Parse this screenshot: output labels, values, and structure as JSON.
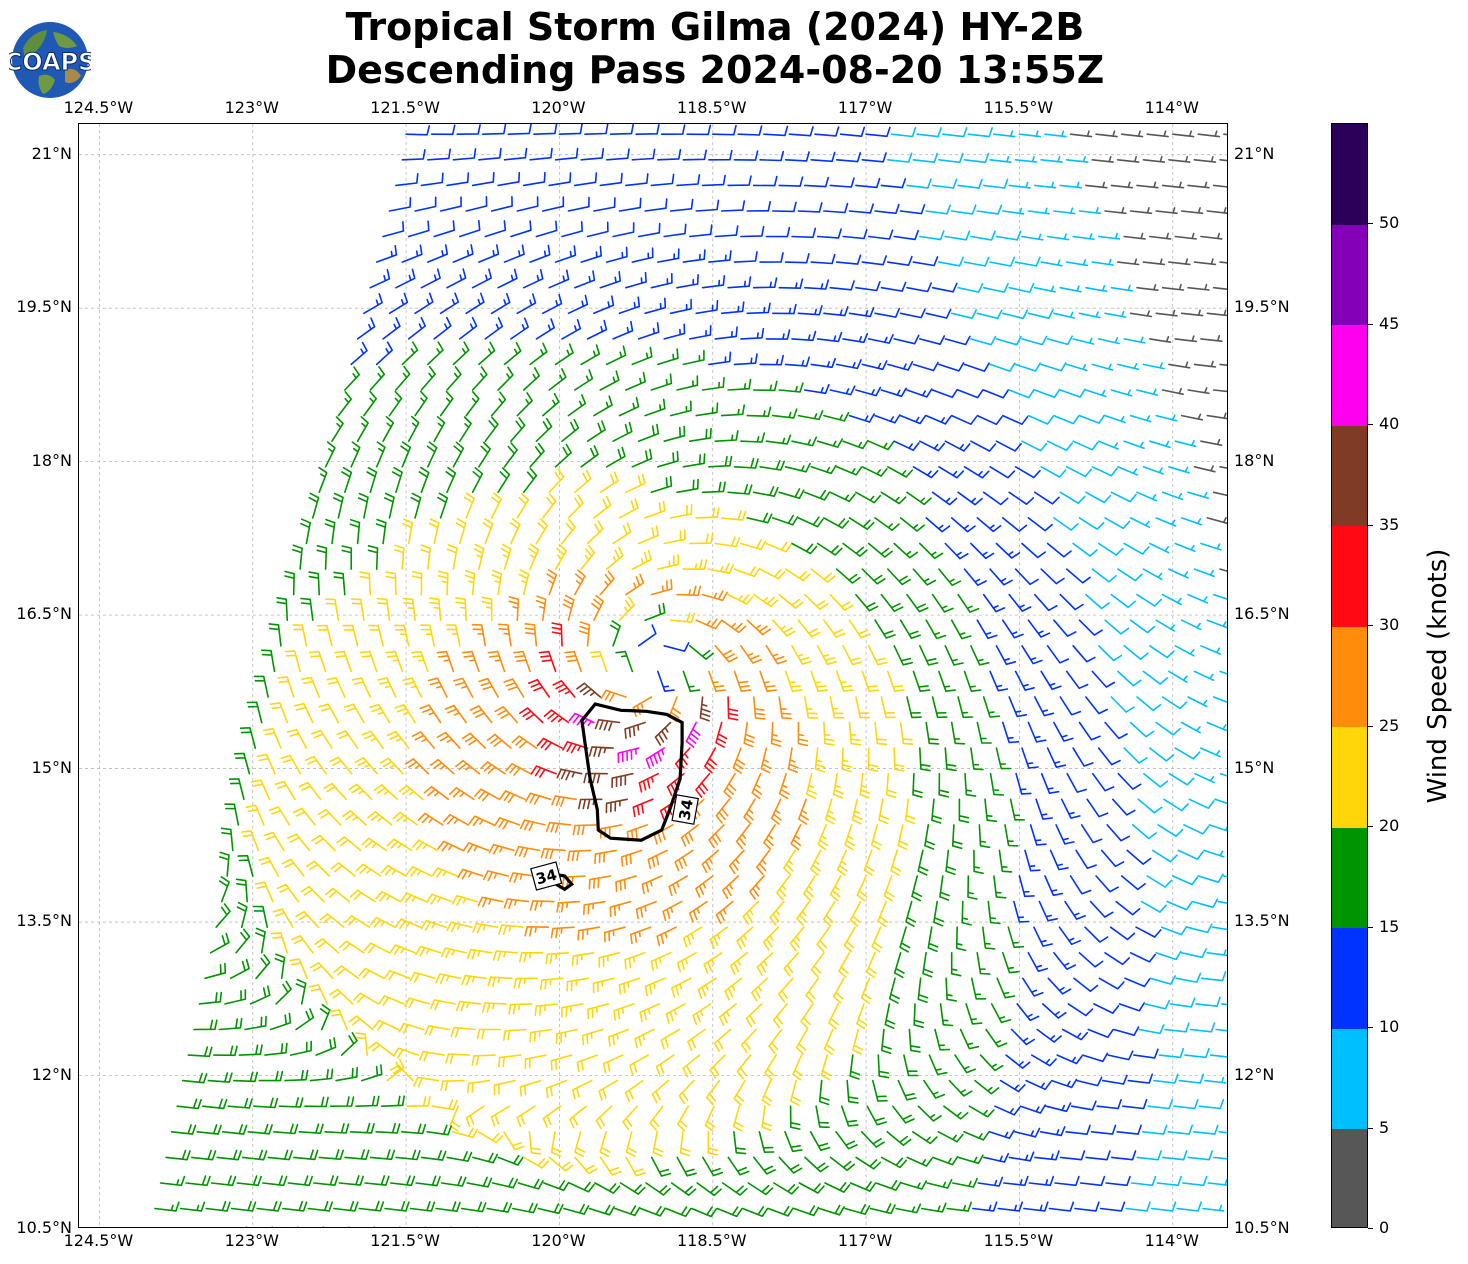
{
  "title": {
    "line1": "Tropical Storm Gilma (2024) HY-2B",
    "line2": "Descending Pass 2024-08-20 13:55Z"
  },
  "logo": {
    "text": "COAPS"
  },
  "map": {
    "lon_range": [
      -124.7,
      -113.45
    ],
    "lat_range": [
      10.5,
      21.3
    ],
    "lon_ticks": [
      {
        "value": -124.5,
        "label": "124.5°W"
      },
      {
        "value": -123.0,
        "label": "123°W"
      },
      {
        "value": -121.5,
        "label": "121.5°W"
      },
      {
        "value": -120.0,
        "label": "120°W"
      },
      {
        "value": -118.5,
        "label": "118.5°W"
      },
      {
        "value": -117.0,
        "label": "117°W"
      },
      {
        "value": -115.5,
        "label": "115.5°W"
      },
      {
        "value": -114.0,
        "label": "114°W"
      }
    ],
    "lat_ticks": [
      {
        "value": 21.0,
        "label": "21°N"
      },
      {
        "value": 19.5,
        "label": "19.5°N"
      },
      {
        "value": 18.0,
        "label": "18°N"
      },
      {
        "value": 16.5,
        "label": "16.5°N"
      },
      {
        "value": 15.0,
        "label": "15°N"
      },
      {
        "value": 13.5,
        "label": "13.5°N"
      },
      {
        "value": 12.0,
        "label": "12°N"
      },
      {
        "value": 10.5,
        "label": "10.5°N"
      }
    ],
    "grid": true,
    "swath": {
      "left_edge": [
        [
          -121.5,
          21.1
        ],
        [
          -123.0,
          15.1
        ],
        [
          -124.0,
          10.5
        ]
      ],
      "right_limit_lon": -113.45
    },
    "storm_center": {
      "lon": -119.15,
      "lat": 15.95
    },
    "contour_34kt": {
      "label": "34",
      "main": [
        [
          -119.65,
          15.63
        ],
        [
          -119.4,
          15.57
        ],
        [
          -119.15,
          15.56
        ],
        [
          -118.95,
          15.53
        ],
        [
          -118.8,
          15.45
        ],
        [
          -118.8,
          15.25
        ],
        [
          -118.82,
          14.9
        ],
        [
          -118.92,
          14.6
        ],
        [
          -119.0,
          14.4
        ],
        [
          -119.2,
          14.3
        ],
        [
          -119.5,
          14.32
        ],
        [
          -119.62,
          14.4
        ],
        [
          -119.63,
          14.6
        ],
        [
          -119.7,
          14.9
        ],
        [
          -119.75,
          15.25
        ],
        [
          -119.78,
          15.47
        ],
        [
          -119.65,
          15.63
        ]
      ],
      "small": [
        [
          -120.25,
          14.0
        ],
        [
          -119.95,
          13.82
        ],
        [
          -119.88,
          13.87
        ],
        [
          -119.95,
          13.95
        ],
        [
          -120.25,
          14.0
        ]
      ],
      "label_positions": [
        [
          -118.77,
          14.6
        ],
        [
          -120.13,
          13.95
        ]
      ]
    }
  },
  "chart_data": {
    "type": "wind_barbs",
    "parameter": "Wind Speed (knots)",
    "grid_spacing_deg": 0.25,
    "circulation": "cyclonic",
    "max_wind_kt": 42,
    "features": [
      {
        "region": "core south of center",
        "speed_kt": "35-45"
      },
      {
        "region": "band southwest of center",
        "speed_kt": "30-35"
      },
      {
        "region": "inner ring",
        "speed_kt": "25-30"
      },
      {
        "region": "outer ring",
        "speed_kt": "20-25"
      },
      {
        "region": "far field",
        "speed_kt": "15-20"
      },
      {
        "region": "east / northeast",
        "speed_kt": "5-15"
      }
    ]
  },
  "colorbar": {
    "label": "Wind Speed (knots)",
    "bins": [
      {
        "min": 0,
        "max": 5,
        "color": "#575757"
      },
      {
        "min": 5,
        "max": 10,
        "color": "#00bfff"
      },
      {
        "min": 10,
        "max": 15,
        "color": "#0033ff"
      },
      {
        "min": 15,
        "max": 20,
        "color": "#009400"
      },
      {
        "min": 20,
        "max": 25,
        "color": "#ffd60a"
      },
      {
        "min": 25,
        "max": 30,
        "color": "#ff8c0a"
      },
      {
        "min": 30,
        "max": 35,
        "color": "#ff0a14"
      },
      {
        "min": 35,
        "max": 40,
        "color": "#7f3b23"
      },
      {
        "min": 40,
        "max": 45,
        "color": "#ff00ee"
      },
      {
        "min": 45,
        "max": 50,
        "color": "#8300b8"
      },
      {
        "min": 50,
        "max": 55,
        "color": "#2b0058"
      }
    ],
    "ticks": [
      "0",
      "5",
      "10",
      "15",
      "20",
      "25",
      "30",
      "35",
      "40",
      "45",
      "50"
    ]
  }
}
